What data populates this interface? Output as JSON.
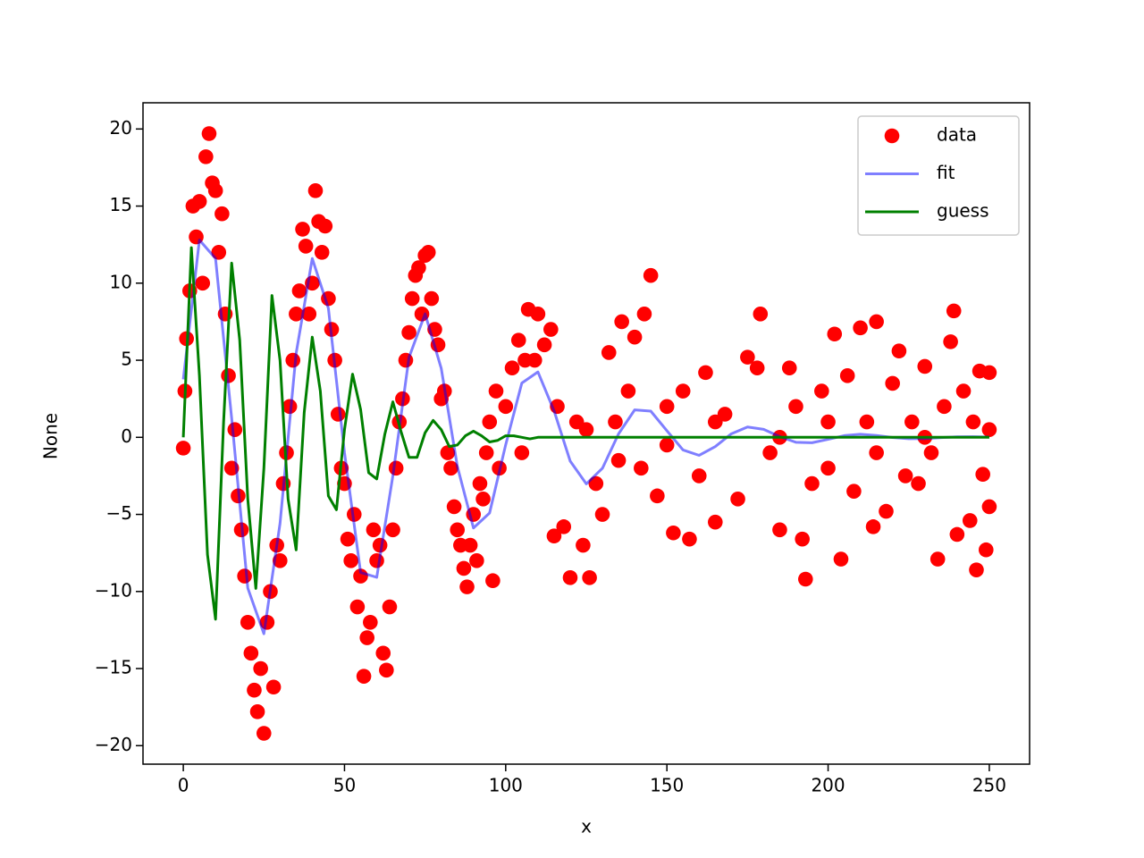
{
  "chart_data": {
    "type": "scatter-line",
    "xlabel": "x",
    "ylabel": "None",
    "xlim": [
      -12.5,
      262.5
    ],
    "ylim": [
      -21.2,
      21.7
    ],
    "xticks": [
      0,
      50,
      100,
      150,
      200,
      250
    ],
    "yticks": [
      {
        "value": -20,
        "label": "−20"
      },
      {
        "value": -15,
        "label": "−15"
      },
      {
        "value": -10,
        "label": "−10"
      },
      {
        "value": -5,
        "label": "−5"
      },
      0,
      5,
      10,
      15,
      20
    ],
    "legend": "upper right",
    "series": [
      {
        "name": "data",
        "kind": "scatter",
        "color": "#ff0000",
        "x": [
          0,
          0.5,
          1,
          2,
          3,
          4,
          5,
          6,
          7,
          8,
          9,
          10,
          11,
          12,
          13,
          14,
          15,
          16,
          17,
          18,
          19,
          20,
          21,
          22,
          23,
          24,
          25,
          26,
          27,
          28,
          29,
          30,
          31,
          32,
          33,
          34,
          35,
          36,
          37,
          38,
          39,
          40,
          41,
          42,
          43,
          44,
          45,
          46,
          47,
          48,
          49,
          50,
          51,
          52,
          53,
          54,
          55,
          56,
          57,
          58,
          59,
          60,
          61,
          62,
          63,
          64,
          65,
          66,
          67,
          68,
          69,
          70,
          71,
          72,
          73,
          74,
          75,
          76,
          77,
          78,
          79,
          80,
          81,
          82,
          83,
          84,
          85,
          86,
          87,
          88,
          89,
          90,
          91,
          92,
          93,
          94,
          95,
          96,
          97,
          98,
          100,
          102,
          104,
          106,
          107,
          109,
          110,
          112,
          114,
          115,
          116,
          118,
          120,
          122,
          124,
          126,
          128,
          130,
          132,
          134,
          136,
          138,
          140,
          142,
          143,
          145,
          147,
          150,
          152,
          155,
          157,
          160,
          162,
          165,
          168,
          172,
          175,
          178,
          179,
          182,
          185,
          188,
          190,
          192,
          193,
          195,
          198,
          200,
          202,
          204,
          206,
          208,
          210,
          212,
          214,
          215,
          218,
          220,
          222,
          224,
          226,
          228,
          230,
          232,
          234,
          236,
          238,
          239,
          240,
          242,
          244,
          246,
          247,
          248,
          249,
          250,
          250,
          250,
          105,
          125,
          135,
          150,
          165,
          185,
          200,
          215,
          230,
          245
        ],
        "values": [
          -0.7,
          3,
          6.4,
          9.5,
          15,
          13,
          15.3,
          10,
          18.2,
          19.7,
          16.5,
          16,
          12,
          14.5,
          8,
          4,
          -2,
          0.5,
          -3.8,
          -6,
          -9,
          -12,
          -14,
          -16.4,
          -17.8,
          -15,
          -19.2,
          -12,
          -10,
          -16.2,
          -7,
          -8,
          -3,
          -1,
          2,
          5,
          8,
          9.5,
          13.5,
          12.4,
          8,
          10,
          16,
          14,
          12,
          13.7,
          9,
          7,
          5,
          1.5,
          -2,
          -3,
          -6.6,
          -8,
          -5,
          -11,
          -9,
          -15.5,
          -13,
          -12,
          -6,
          -8,
          -7,
          -14,
          -15.1,
          -11,
          -6,
          -2,
          1,
          2.5,
          5,
          6.8,
          9,
          10.5,
          11,
          8,
          11.8,
          12,
          9,
          7,
          6,
          2.5,
          3,
          -1,
          -2,
          -4.5,
          -6,
          -7,
          -8.5,
          -9.7,
          -7,
          -5,
          -8,
          -3,
          -4,
          -1,
          1,
          -9.3,
          3,
          -2,
          2,
          4.5,
          6.3,
          5,
          8.3,
          5,
          8,
          6,
          7,
          -6.4,
          2,
          -5.8,
          -9.1,
          1,
          -7,
          -9.1,
          -3,
          -5,
          5.5,
          1,
          7.5,
          3,
          6.5,
          -2,
          8,
          10.5,
          -3.8,
          2,
          -6.2,
          3,
          -6.6,
          -2.5,
          4.2,
          -5.5,
          1.5,
          -4,
          5.2,
          4.5,
          8,
          -1,
          -6,
          4.5,
          2,
          -6.6,
          -9.2,
          -3,
          3,
          -2,
          6.7,
          -7.9,
          4,
          -3.5,
          7.1,
          1,
          -5.8,
          7.5,
          -4.8,
          3.5,
          5.6,
          -2.5,
          1,
          -3,
          4.6,
          -1,
          -7.9,
          2,
          6.2,
          8.2,
          -6.3,
          3,
          -5.4,
          -8.6,
          4.3,
          -2.4,
          -7.3,
          4.2,
          -4.5,
          0.5,
          -1,
          0.5,
          -1.5,
          -0.5,
          1,
          0,
          1,
          -1,
          0,
          1
        ]
      },
      {
        "name": "fit",
        "kind": "line",
        "color": "#0000ff",
        "alpha": 0.5,
        "x": [
          0,
          5,
          10,
          15,
          20,
          25,
          30,
          35,
          40,
          45,
          50,
          55,
          60,
          65,
          70,
          75,
          80,
          85,
          90,
          95,
          100,
          105,
          110,
          115,
          120,
          125,
          130,
          135,
          140,
          145,
          150,
          155,
          160,
          165,
          170,
          175,
          180,
          185,
          190,
          195,
          200,
          205,
          210,
          215,
          220,
          225,
          230,
          235,
          240,
          245,
          250
        ],
        "values": [
          3.76,
          12.8,
          11.6,
          1.24,
          -9.78,
          -12.74,
          -5.59,
          5.45,
          11.6,
          8.37,
          -1.0,
          -8.77,
          -9.08,
          -2.5,
          5.18,
          8.01,
          4.48,
          -1.88,
          -5.88,
          -4.91,
          -0.48,
          3.52,
          4.24,
          1.72,
          -1.54,
          -3.02,
          -2.01,
          0.22,
          1.78,
          1.7,
          0.43,
          -0.82,
          -1.17,
          -0.6,
          0.23,
          0.67,
          0.52,
          0.05,
          -0.32,
          -0.35,
          -0.13,
          0.11,
          0.2,
          0.12,
          -0.01,
          -0.09,
          -0.08,
          -0.02,
          0.03,
          0.04,
          0.02
        ]
      },
      {
        "name": "guess",
        "kind": "line",
        "color": "#008000",
        "x": [
          0,
          2.5,
          5,
          7.5,
          10,
          12.5,
          15,
          17.5,
          20,
          22.5,
          25,
          27.5,
          30,
          32.5,
          35,
          37.5,
          40,
          42.5,
          45,
          47.5,
          50,
          52.5,
          55,
          57.5,
          60,
          62.5,
          65,
          67.5,
          70,
          72.5,
          75,
          77.5,
          80,
          82.5,
          85,
          87.5,
          90,
          92.5,
          95,
          97.5,
          100,
          102.5,
          105,
          107.5,
          110,
          250
        ],
        "values": [
          0,
          12.3,
          4,
          -7.6,
          -11.8,
          1,
          11.3,
          6.3,
          -4,
          -9.8,
          -2,
          9.2,
          5,
          -4,
          -7.3,
          1.6,
          6.5,
          3,
          -3.8,
          -4.7,
          0.5,
          4.1,
          1.8,
          -2.3,
          -2.7,
          0.2,
          2.3,
          0.4,
          -1.3,
          -1.3,
          0.3,
          1.1,
          0.5,
          -0.6,
          -0.5,
          0.1,
          0.4,
          0.1,
          -0.3,
          -0.2,
          0.1,
          0.1,
          0,
          -0.1,
          0,
          0
        ]
      }
    ]
  }
}
